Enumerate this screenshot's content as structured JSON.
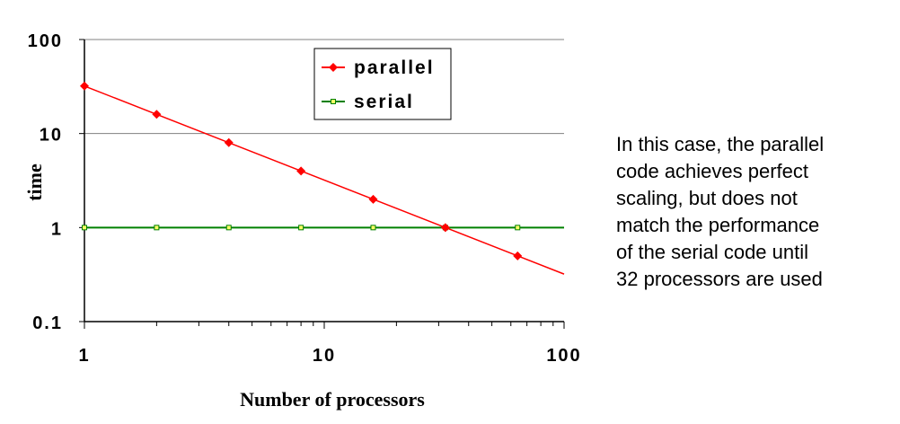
{
  "chart_data": {
    "type": "line",
    "title": "",
    "xlabel": "Number of processors",
    "ylabel": "time",
    "x_scale": "log",
    "y_scale": "log",
    "xlim": [
      1,
      100
    ],
    "ylim": [
      0.1,
      100
    ],
    "x_ticks": [
      "1",
      "10",
      "100"
    ],
    "y_ticks": [
      "0.1",
      "1",
      "10",
      "100"
    ],
    "grid": "horizontal major",
    "legend_position": "top-center",
    "series": [
      {
        "name": "parallel",
        "color": "#ff0000",
        "marker": "diamond",
        "x": [
          1,
          2,
          4,
          8,
          16,
          32,
          64
        ],
        "y": [
          32,
          16,
          8,
          4,
          2,
          1,
          0.5
        ],
        "line_to_edge": [
          100,
          0.32
        ]
      },
      {
        "name": "serial",
        "color": "#008000",
        "marker": "square",
        "marker_fill": "#ffff66",
        "x": [
          1,
          2,
          4,
          8,
          16,
          32,
          64
        ],
        "y": [
          1,
          1,
          1,
          1,
          1,
          1,
          1
        ]
      }
    ]
  },
  "annotation": {
    "lines": [
      "In this case, the parallel",
      "code achieves perfect",
      "scaling, but does not",
      "match the performance",
      "of the serial code until",
      "32 processors are used"
    ]
  }
}
